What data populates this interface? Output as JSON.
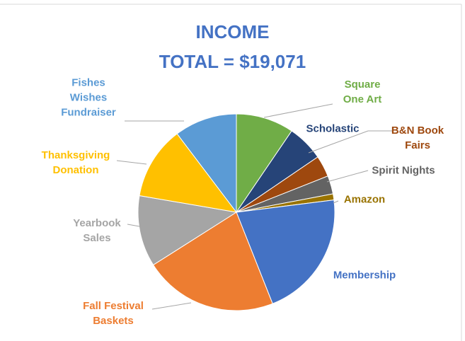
{
  "chart_data": {
    "type": "pie",
    "title": "INCOME",
    "subtitle": "TOTAL = $19,071",
    "categories": [
      "Square One Art",
      "Scholastic",
      "B&N Book Fairs",
      "Spirit Nights",
      "Amazon",
      "Membership",
      "Fall Festival Baskets",
      "Yearbook Sales",
      "Thanksgiving Donation",
      "Fishes Wishes Fundraiser"
    ],
    "values": [
      9.5,
      6,
      3.5,
      3,
      1,
      21,
      22,
      11.7,
      12,
      10.3
    ],
    "colors": [
      "#70ad47",
      "#264478",
      "#9e480e",
      "#636363",
      "#997300",
      "#4472c4",
      "#ed7d31",
      "#a5a5a5",
      "#ffc000",
      "#5b9bd5"
    ],
    "label_colors": [
      "#70ad47",
      "#264478",
      "#9e480e",
      "#636363",
      "#997300",
      "#4472c4",
      "#ed7d31",
      "#a5a5a5",
      "#ffc000",
      "#5b9bd5"
    ]
  }
}
